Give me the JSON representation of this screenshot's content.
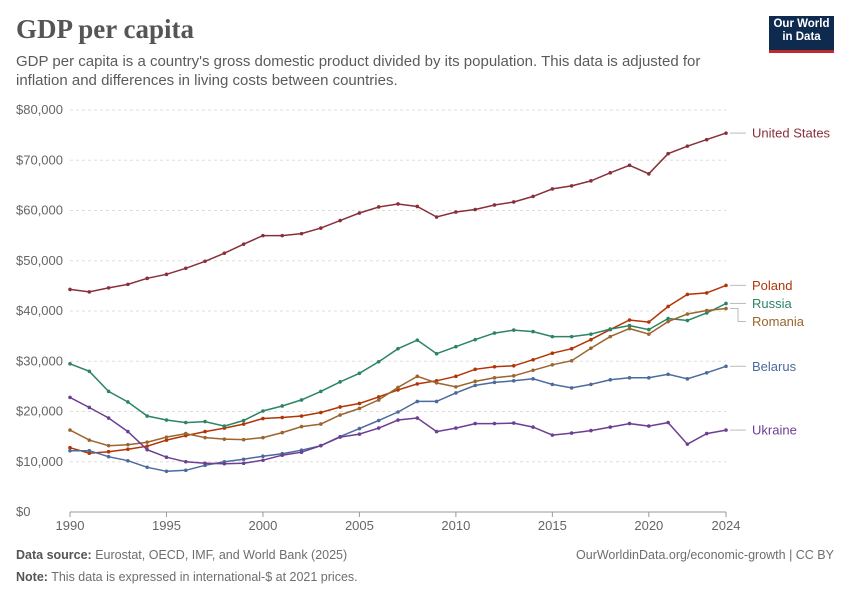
{
  "header": {
    "title": "GDP per capita",
    "subtitle": "GDP per capita is a country's gross domestic product divided by its population. This data is adjusted for inflation and differences in living costs between countries."
  },
  "logo": {
    "line1": "Our World",
    "line2": "in Data"
  },
  "footer": {
    "source_label": "Data source:",
    "source_text": "Eurostat, OECD, IMF, and World Bank (2025)",
    "url_text": "OurWorldinData.org/economic-growth | CC BY",
    "note_label": "Note:",
    "note_text": "This data is expressed in international-$ at 2021 prices."
  },
  "chart_data": {
    "type": "line",
    "ylim": [
      0,
      80000
    ],
    "xlim": [
      1990,
      2024
    ],
    "y_ticks": [
      0,
      10000,
      20000,
      30000,
      40000,
      50000,
      60000,
      70000,
      80000
    ],
    "y_tick_labels": [
      "$0",
      "$10,000",
      "$20,000",
      "$30,000",
      "$40,000",
      "$50,000",
      "$60,000",
      "$70,000",
      "$80,000"
    ],
    "x_ticks": [
      1990,
      1995,
      2000,
      2005,
      2010,
      2015,
      2020,
      2024
    ],
    "x_tick_labels": [
      "1990",
      "1995",
      "2000",
      "2005",
      "2010",
      "2015",
      "2020",
      "2024"
    ],
    "grid": "horizontal dashed",
    "legend": "right-end labels",
    "x": [
      1990,
      1991,
      1992,
      1993,
      1994,
      1995,
      1996,
      1997,
      1998,
      1999,
      2000,
      2001,
      2002,
      2003,
      2004,
      2005,
      2006,
      2007,
      2008,
      2009,
      2010,
      2011,
      2012,
      2013,
      2014,
      2015,
      2016,
      2017,
      2018,
      2019,
      2020,
      2021,
      2022,
      2023,
      2024
    ],
    "series": [
      {
        "name": "United States",
        "color": "#883039",
        "values": [
          44300,
          43800,
          44600,
          45300,
          46500,
          47300,
          48500,
          49900,
          51500,
          53300,
          55000,
          55000,
          55400,
          56500,
          58000,
          59500,
          60700,
          61300,
          60800,
          58700,
          59700,
          60200,
          61100,
          61700,
          62800,
          64300,
          64900,
          65900,
          67500,
          69000,
          67300,
          71300,
          72800,
          74100,
          75400
        ]
      },
      {
        "name": "Poland",
        "color": "#b13507",
        "values": [
          12800,
          11700,
          12000,
          12500,
          13100,
          14300,
          15200,
          16000,
          16700,
          17500,
          18600,
          18800,
          19100,
          19800,
          20900,
          21600,
          22900,
          24300,
          25500,
          26100,
          27000,
          28400,
          28900,
          29100,
          30300,
          31600,
          32500,
          34300,
          36300,
          38200,
          37800,
          40900,
          43300,
          43600,
          45100
        ]
      },
      {
        "name": "Russia",
        "color": "#2c8465",
        "values": [
          29500,
          28000,
          24000,
          21900,
          19100,
          18300,
          17800,
          18000,
          17100,
          18200,
          20100,
          21100,
          22300,
          24000,
          25900,
          27600,
          29900,
          32500,
          34200,
          31500,
          32900,
          34300,
          35600,
          36200,
          35900,
          34900,
          34900,
          35400,
          36400,
          37100,
          36300,
          38500,
          38100,
          39600,
          41500
        ]
      },
      {
        "name": "Romania",
        "color": "#9a652e",
        "values": [
          16300,
          14300,
          13200,
          13400,
          13900,
          14900,
          15600,
          14800,
          14500,
          14400,
          14800,
          15800,
          17000,
          17500,
          19300,
          20600,
          22300,
          24800,
          27000,
          25700,
          24900,
          26000,
          26700,
          27100,
          28200,
          29300,
          30100,
          32600,
          34900,
          36500,
          35400,
          37900,
          39400,
          40100,
          40500
        ]
      },
      {
        "name": "Belarus",
        "color": "#4c6a9c",
        "values": [
          12200,
          12200,
          11000,
          10200,
          8900,
          8100,
          8300,
          9300,
          10000,
          10500,
          11100,
          11600,
          12300,
          13200,
          15000,
          16600,
          18200,
          19900,
          22000,
          22000,
          23700,
          25200,
          25800,
          26100,
          26500,
          25400,
          24700,
          25400,
          26300,
          26700,
          26700,
          27400,
          26500,
          27700,
          29000
        ]
      },
      {
        "name": "Ukraine",
        "color": "#6d3e91",
        "values": [
          22800,
          20800,
          18700,
          16000,
          12400,
          10900,
          10000,
          9700,
          9600,
          9700,
          10300,
          11300,
          11900,
          13200,
          14900,
          15500,
          16700,
          18300,
          18700,
          16000,
          16700,
          17600,
          17600,
          17700,
          16900,
          15300,
          15700,
          16200,
          16900,
          17600,
          17100,
          17800,
          13500,
          15600,
          16300
        ]
      }
    ]
  }
}
